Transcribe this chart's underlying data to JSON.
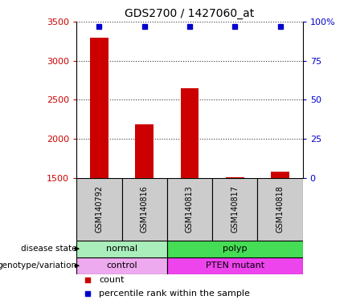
{
  "title": "GDS2700 / 1427060_at",
  "samples": [
    "GSM140792",
    "GSM140816",
    "GSM140813",
    "GSM140817",
    "GSM140818"
  ],
  "counts": [
    3290,
    2180,
    2650,
    1510,
    1575
  ],
  "percentile_ranks": [
    97,
    97,
    97,
    97,
    97
  ],
  "ylim_left": [
    1500,
    3500
  ],
  "ylim_right": [
    0,
    100
  ],
  "yticks_left": [
    1500,
    2000,
    2500,
    3000,
    3500
  ],
  "yticks_right": [
    0,
    25,
    50,
    75,
    100
  ],
  "bar_color": "#cc0000",
  "dot_color": "#0000cc",
  "disease_state": [
    {
      "label": "normal",
      "samples": [
        0,
        1
      ],
      "color": "#aaeebb"
    },
    {
      "label": "polyp",
      "samples": [
        2,
        3,
        4
      ],
      "color": "#44dd55"
    }
  ],
  "genotype": [
    {
      "label": "control",
      "samples": [
        0,
        1
      ],
      "color": "#eeaaee"
    },
    {
      "label": "PTEN mutant",
      "samples": [
        2,
        3,
        4
      ],
      "color": "#ee44ee"
    }
  ],
  "legend_count_color": "#cc0000",
  "legend_pct_color": "#0000cc",
  "tick_label_color_left": "#cc0000",
  "tick_label_color_right": "#0000cc",
  "xlabels_bg": "#cccccc",
  "bar_width": 0.4
}
